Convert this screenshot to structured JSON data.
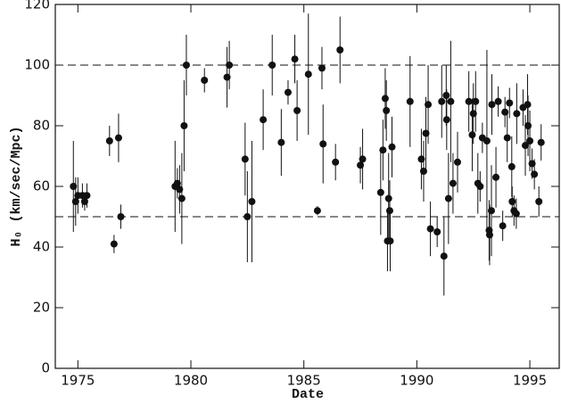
{
  "chart_data": {
    "type": "scatter",
    "xlabel": "Date",
    "ylabel": "H₀ (km/sec/Mpc)",
    "xlim": [
      1974,
      1996.3
    ],
    "ylim": [
      0,
      120
    ],
    "xticks": [
      1975,
      1980,
      1985,
      1990,
      1995
    ],
    "yticks": [
      0,
      20,
      40,
      60,
      80,
      100,
      120
    ],
    "hlines": [
      50,
      100
    ],
    "series": [
      {
        "color": "#111111",
        "x": [
          1974.8,
          1974.9,
          1975.0,
          1975.2,
          1975.3,
          1975.4,
          1976.4,
          1976.6,
          1976.8,
          1976.9,
          1979.3,
          1979.4,
          1979.5,
          1979.6,
          1979.7,
          1979.8,
          1980.6,
          1981.6,
          1981.7,
          1982.4,
          1982.5,
          1982.7,
          1983.2,
          1983.6,
          1984.0,
          1984.3,
          1984.6,
          1984.7,
          1985.2,
          1985.6,
          1985.8,
          1985.85,
          1986.4,
          1986.6,
          1987.5,
          1987.6,
          1988.4,
          1988.5,
          1988.6,
          1988.65,
          1988.7,
          1988.75,
          1988.8,
          1988.82,
          1988.9,
          1989.7,
          1990.2,
          1990.3,
          1990.4,
          1990.5,
          1990.6,
          1990.9,
          1991.1,
          1991.2,
          1991.3,
          1991.32,
          1991.4,
          1991.5,
          1991.6,
          1991.8,
          1992.3,
          1992.45,
          1992.5,
          1992.6,
          1992.7,
          1992.8,
          1992.9,
          1993.1,
          1993.2,
          1993.22,
          1993.3,
          1993.32,
          1993.5,
          1993.6,
          1993.8,
          1993.9,
          1994.0,
          1994.1,
          1994.2,
          1994.22,
          1994.3,
          1994.4,
          1994.42,
          1994.7,
          1994.8,
          1994.9,
          1994.92,
          1995.0,
          1995.1,
          1995.2,
          1995.4,
          1995.5
        ],
        "values": [
          60,
          55,
          57,
          57,
          55,
          57,
          75,
          41,
          76,
          50,
          60,
          61,
          59,
          56,
          80,
          100,
          95,
          96,
          100,
          69,
          50,
          55,
          82,
          100,
          74.5,
          91,
          102,
          85,
          97,
          52,
          99,
          74,
          68,
          105,
          67,
          69,
          58,
          72,
          89,
          85,
          42,
          56,
          52,
          42,
          73,
          88,
          69,
          65,
          77.5,
          87,
          46,
          45,
          88,
          37,
          90,
          82,
          56,
          88,
          61,
          68,
          88,
          77,
          84,
          88,
          61,
          60,
          76,
          75,
          45.5,
          44,
          52,
          87,
          63,
          88,
          47,
          84.5,
          76,
          87.5,
          66.5,
          55,
          52,
          51,
          84,
          86,
          73.5,
          87,
          80,
          75,
          67.5,
          64,
          55,
          74.5
        ],
        "errors": [
          15,
          8,
          6,
          4,
          3,
          4,
          5,
          3,
          8,
          4,
          15,
          5,
          8,
          15,
          15,
          10,
          4,
          10,
          8,
          12,
          15,
          20,
          10,
          10,
          11,
          4,
          8,
          10,
          20,
          1.5,
          7,
          13,
          6,
          11,
          6,
          10,
          14,
          10,
          10,
          10,
          10,
          15,
          10,
          10,
          10,
          15,
          10,
          10,
          12,
          13,
          9,
          5,
          12,
          13,
          10,
          10,
          15,
          20,
          10,
          10,
          10,
          12,
          10,
          10,
          10,
          5,
          5,
          30,
          10,
          10,
          15,
          10,
          10,
          5,
          5,
          5,
          8,
          5,
          10,
          5,
          5,
          5,
          10,
          6,
          10,
          10,
          10,
          10,
          5,
          5,
          5,
          6
        ]
      }
    ]
  }
}
